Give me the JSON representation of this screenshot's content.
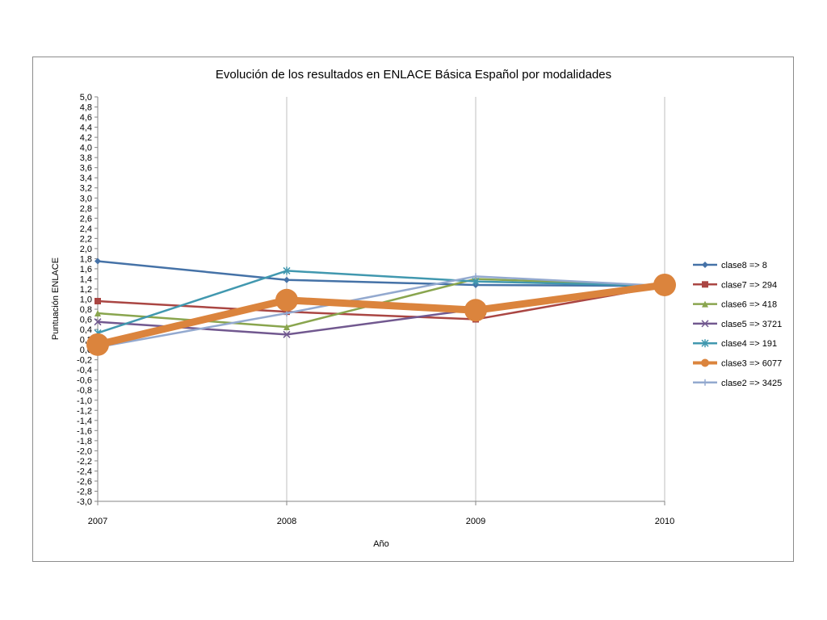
{
  "chart_data": {
    "type": "line",
    "title": "Evolución de los resultados en ENLACE Básica Español por modalidades",
    "xlabel": "Año",
    "ylabel": "Puntuación ENLACE",
    "x": [
      "2007",
      "2008",
      "2009",
      "2010"
    ],
    "ylim": [
      -3.0,
      5.0
    ],
    "ytick_step": 0.2,
    "grid": "vertical",
    "legend": "right",
    "series": [
      {
        "name": "clase8 => 8",
        "color": "#4572a7",
        "marker": "diamond",
        "values": [
          1.75,
          1.38,
          1.28,
          1.26
        ]
      },
      {
        "name": "clase7 => 294",
        "color": "#aa4643",
        "marker": "square",
        "values": [
          0.96,
          0.75,
          0.6,
          1.26
        ]
      },
      {
        "name": "clase6 => 418",
        "color": "#89a54e",
        "marker": "triangle",
        "values": [
          0.72,
          0.45,
          1.4,
          1.26
        ]
      },
      {
        "name": "clase5 => 3721",
        "color": "#71588f",
        "marker": "x",
        "values": [
          0.55,
          0.3,
          0.8,
          1.26
        ]
      },
      {
        "name": "clase4 => 191",
        "color": "#4198af",
        "marker": "star",
        "values": [
          0.33,
          1.56,
          1.35,
          1.26
        ]
      },
      {
        "name": "clase3 => 6077",
        "color": "#db843d",
        "marker": "circle",
        "values": [
          0.1,
          0.98,
          0.78,
          1.28
        ]
      },
      {
        "name": "clase2 => 3425",
        "color": "#93a9cf",
        "marker": "plus",
        "values": [
          0.05,
          0.72,
          1.45,
          1.26
        ]
      }
    ]
  }
}
